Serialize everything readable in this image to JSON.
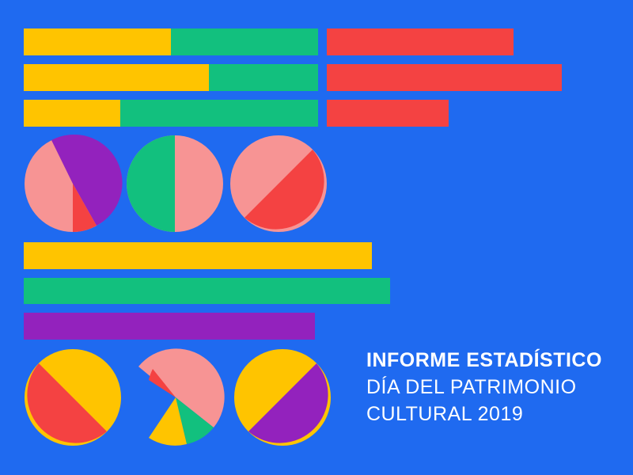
{
  "colors": {
    "background": "#1f6af0",
    "yellow": "#ffc400",
    "green": "#12c07e",
    "red": "#f44242",
    "pink": "#f79494",
    "purple": "#9322bd",
    "text": "#ffffff"
  },
  "title": {
    "line1": "INFORME ESTADÍSTICO",
    "line2": "DÍA DEL PATRIMONIO",
    "line3": "CULTURAL 2019"
  }
}
